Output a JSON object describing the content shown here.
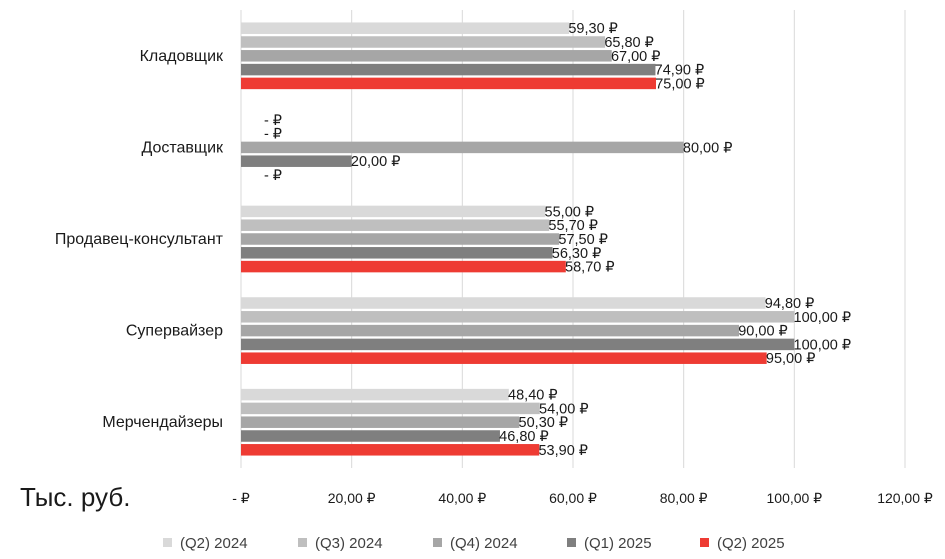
{
  "chart_data": {
    "type": "bar",
    "orientation": "horizontal",
    "categories": [
      "Кладовщик",
      "Доставщик",
      "Продавец-консультант",
      "Супервайзер",
      "Мерчендайзеры"
    ],
    "series": [
      {
        "name": "(Q2) 2024",
        "color": "#d9d9d9",
        "values": [
          59.3,
          0,
          55.0,
          94.8,
          48.4
        ],
        "labels": [
          "59,30 ₽",
          "-   ₽",
          "55,00 ₽",
          "94,80 ₽",
          "48,40 ₽"
        ]
      },
      {
        "name": "(Q3) 2024",
        "color": "#bfbfbf",
        "values": [
          65.8,
          0,
          55.7,
          100.0,
          54.0
        ],
        "labels": [
          "65,80 ₽",
          "-   ₽",
          "55,70 ₽",
          "100,00 ₽",
          "54,00 ₽"
        ]
      },
      {
        "name": "(Q4) 2024",
        "color": "#a6a6a6",
        "values": [
          67.0,
          80.0,
          57.5,
          90.0,
          50.3
        ],
        "labels": [
          "67,00 ₽",
          "80,00 ₽",
          "57,50 ₽",
          "90,00 ₽",
          "50,30 ₽"
        ]
      },
      {
        "name": "(Q1) 2025",
        "color": "#7f7f7f",
        "values": [
          74.9,
          20.0,
          56.3,
          100.0,
          46.8
        ],
        "labels": [
          "74,90 ₽",
          "20,00 ₽",
          "56,30 ₽",
          "100,00 ₽",
          "46,80 ₽"
        ]
      },
      {
        "name": "(Q2) 2025",
        "color": "#ee3b33",
        "values": [
          75.0,
          0,
          58.7,
          95.0,
          53.9
        ],
        "labels": [
          "75,00 ₽",
          "-   ₽",
          "58,70 ₽",
          "95,00 ₽",
          "53,90 ₽"
        ]
      }
    ],
    "x_ticks": [
      0,
      20,
      40,
      60,
      80,
      100,
      120
    ],
    "x_tick_labels": [
      "-   ₽",
      "20,00 ₽",
      "40,00 ₽",
      "60,00 ₽",
      "80,00 ₽",
      "100,00 ₽",
      "120,00 ₽"
    ],
    "xlim": [
      0,
      120
    ],
    "unit_label": "Тыс. руб.",
    "grid": true,
    "legend_position": "bottom"
  }
}
